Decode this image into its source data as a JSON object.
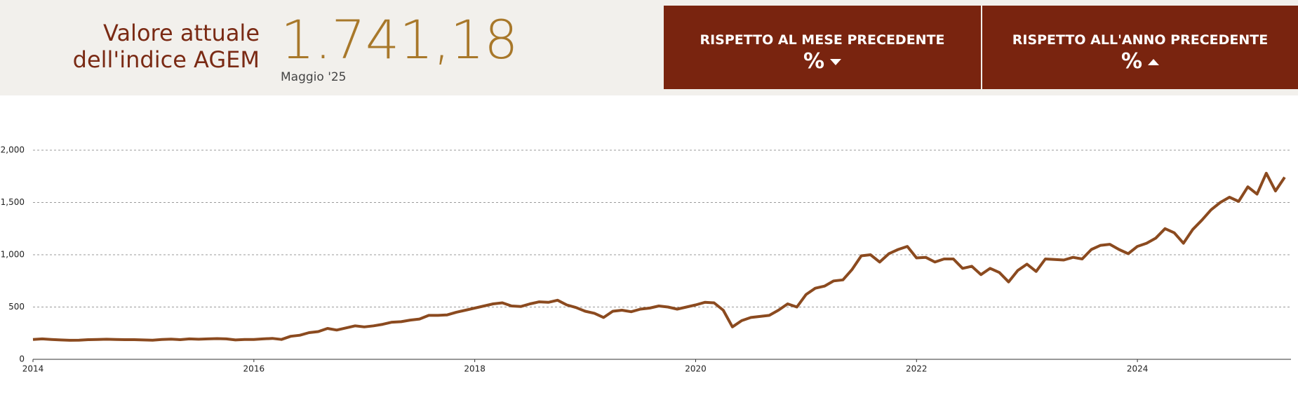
{
  "header": {
    "title_lines": [
      "Valore attuale",
      "dell'indice AGEM"
    ],
    "value": "1.741,18",
    "period": "Maggio '25",
    "boxes": [
      {
        "label": "RISPETTO AL MESE PRECEDENTE",
        "unit": "%"
      },
      {
        "label": "RISPETTO ALL'ANNO PRECEDENTE",
        "unit": "%"
      }
    ]
  },
  "chart_data": {
    "type": "line",
    "categories": [
      "2014",
      null,
      null,
      null,
      null,
      null,
      null,
      null,
      null,
      null,
      null,
      null,
      null,
      null,
      null,
      null,
      null,
      null,
      null,
      null,
      null,
      null,
      null,
      null,
      "2016",
      null,
      null,
      null,
      null,
      null,
      null,
      null,
      null,
      null,
      null,
      null,
      null,
      null,
      null,
      null,
      null,
      null,
      null,
      null,
      null,
      null,
      null,
      null,
      "2018",
      null,
      null,
      null,
      null,
      null,
      null,
      null,
      null,
      null,
      null,
      null,
      null,
      null,
      null,
      null,
      null,
      null,
      null,
      null,
      null,
      null,
      null,
      null,
      "2020",
      null,
      null,
      null,
      null,
      null,
      null,
      null,
      null,
      null,
      null,
      null,
      null,
      null,
      null,
      null,
      null,
      null,
      null,
      null,
      null,
      null,
      null,
      null,
      "2022",
      null,
      null,
      null,
      null,
      null,
      null,
      null,
      null,
      null,
      null,
      null,
      null,
      null,
      null,
      null,
      null,
      null,
      null,
      null,
      null,
      null,
      null,
      null,
      "2024",
      null,
      null,
      null,
      null,
      null,
      null,
      null,
      null,
      null,
      null,
      null,
      null,
      null,
      null,
      null,
      null
    ],
    "series": [
      {
        "color": "#8b4a1f",
        "values": [
          190,
          195,
          190,
          185,
          182,
          183,
          188,
          190,
          192,
          190,
          188,
          188,
          185,
          183,
          190,
          193,
          188,
          195,
          192,
          195,
          198,
          195,
          185,
          190,
          190,
          195,
          200,
          190,
          220,
          230,
          255,
          265,
          295,
          280,
          300,
          320,
          310,
          320,
          335,
          355,
          360,
          375,
          385,
          420,
          420,
          425,
          450,
          470,
          490,
          510,
          530,
          540,
          510,
          505,
          530,
          550,
          545,
          565,
          520,
          495,
          460,
          440,
          400,
          460,
          470,
          455,
          480,
          490,
          510,
          500,
          480,
          500,
          520,
          545,
          540,
          470,
          310,
          370,
          400,
          410,
          420,
          470,
          530,
          500,
          620,
          680,
          700,
          750,
          760,
          860,
          990,
          1000,
          930,
          1010,
          1050,
          1080,
          970,
          975,
          930,
          960,
          960,
          870,
          890,
          810,
          870,
          830,
          740,
          850,
          910,
          840,
          960,
          955,
          950,
          975,
          960,
          1050,
          1090,
          1100,
          1050,
          1010,
          1080,
          1110,
          1160,
          1250,
          1210,
          1110,
          1240,
          1330,
          1430,
          1500,
          1550,
          1510,
          1650,
          1580,
          1780,
          1610,
          1741.18
        ]
      }
    ],
    "ylim": [
      0,
      2000
    ],
    "yticks": [
      0,
      500,
      {
        "value": 1000,
        "label": "1,000"
      },
      {
        "value": 1500,
        "label": "1,500"
      },
      {
        "value": 2000,
        "label": "2,000"
      }
    ],
    "grid": true
  }
}
